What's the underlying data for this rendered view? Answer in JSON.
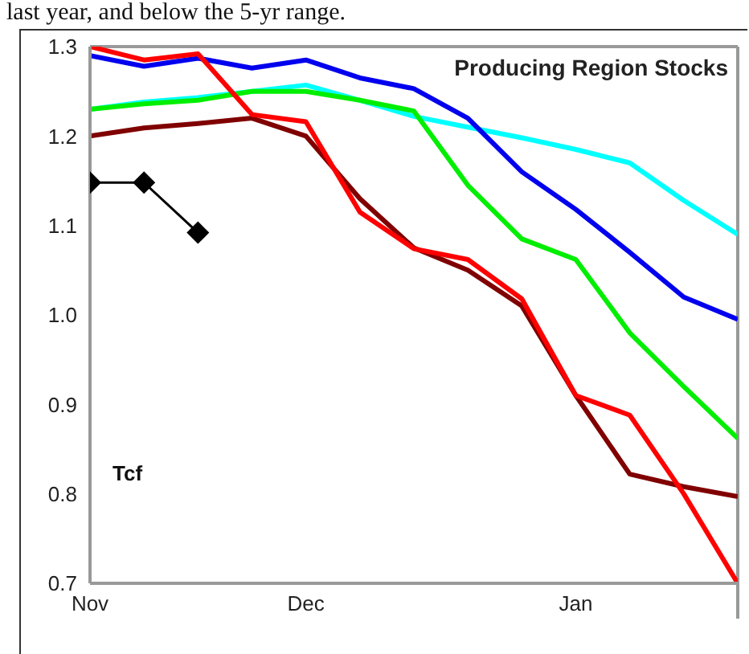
{
  "chart_data": {
    "type": "line",
    "title": "Producing Region Stocks",
    "ylabel": "Tcf",
    "annotations": [
      "last year, and below the 5-yr range."
    ],
    "categories": [
      "Nov",
      null,
      null,
      null,
      "Dec",
      null,
      null,
      null,
      null,
      "Jan",
      null,
      null,
      null
    ],
    "ylim": [
      0.7,
      1.3
    ],
    "yticks": [
      0.7,
      0.8,
      0.9,
      {
        "value": 1,
        "label": "1.0"
      },
      1.1,
      1.2,
      1.3
    ],
    "grid": false,
    "legend": false,
    "line_style": "solid",
    "series": [
      {
        "color": "#00ffff",
        "marker": "none",
        "values": [
          1.23,
          1.238,
          1.243,
          1.25,
          1.257,
          1.24,
          1.222,
          1.21,
          1.198,
          1.185,
          1.17,
          1.128,
          1.09
        ]
      },
      {
        "color": "#00ee00",
        "marker": "none",
        "values": [
          1.23,
          1.236,
          1.24,
          1.25,
          1.25,
          1.24,
          1.228,
          1.145,
          1.085,
          1.062,
          0.98,
          0.92,
          0.862
        ]
      },
      {
        "color": "#0000ee",
        "marker": "none",
        "values": [
          1.29,
          1.278,
          1.287,
          1.276,
          1.285,
          1.265,
          1.253,
          1.22,
          1.16,
          1.118,
          1.07,
          1.02,
          0.995
        ]
      },
      {
        "color": "#800000",
        "marker": "none",
        "values": [
          1.2,
          1.209,
          1.214,
          1.22,
          1.2,
          1.13,
          1.075,
          1.05,
          1.01,
          0.91,
          0.822,
          0.808,
          0.797
        ]
      },
      {
        "color": "#ff0000",
        "marker": "none",
        "values": [
          1.3,
          1.285,
          1.292,
          1.224,
          1.216,
          1.115,
          1.074,
          1.062,
          1.018,
          0.91,
          0.888,
          0.8,
          0.7
        ]
      },
      {
        "color": "#000000",
        "marker": "diamond",
        "values": [
          1.148,
          1.148,
          1.092,
          null,
          null,
          null,
          null,
          null,
          null,
          null,
          null,
          null,
          null
        ]
      }
    ]
  }
}
